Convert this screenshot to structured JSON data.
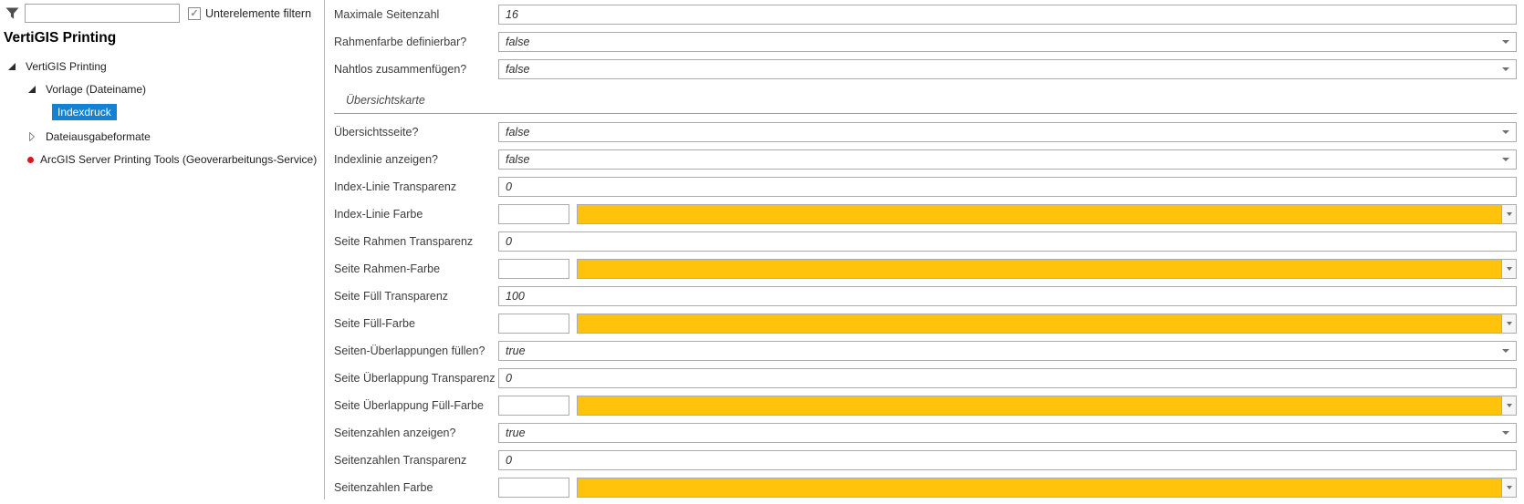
{
  "filter": {
    "input_value": "",
    "checkbox_label": "Unterelemente filtern",
    "checkbox_checked": true,
    "check_glyph": "✓"
  },
  "title": "VertiGIS Printing",
  "tree": [
    {
      "label": "VertiGIS Printing",
      "level": 1,
      "expander": "expanded"
    },
    {
      "label": "Vorlage (Dateiname)",
      "level": 2,
      "expander": "expanded"
    },
    {
      "label": "Indexdruck",
      "level": 3,
      "selected": true
    },
    {
      "label": "Dateiausgabeformate",
      "level": 2,
      "expander": "collapsed"
    },
    {
      "label": "ArcGIS Server Printing Tools (Geoverarbeitungs-Service)",
      "level": 2,
      "bullet": "red-dot"
    }
  ],
  "form": {
    "rows": [
      {
        "type": "text",
        "label": "Maximale Seitenzahl",
        "value": "16"
      },
      {
        "type": "select",
        "label": "Rahmenfarbe definierbar?",
        "value": "false"
      },
      {
        "type": "select",
        "label": "Nahtlos zusammenfügen?",
        "value": "false"
      },
      {
        "type": "section",
        "label": "Übersichtskarte"
      },
      {
        "type": "select",
        "label": "Übersichtsseite?",
        "value": "false"
      },
      {
        "type": "select",
        "label": "Indexlinie anzeigen?",
        "value": "false"
      },
      {
        "type": "text",
        "label": "Index-Linie Transparenz",
        "value": "0"
      },
      {
        "type": "color",
        "label": "Index-Linie Farbe",
        "value": "",
        "swatch": "#FFC30B"
      },
      {
        "type": "text",
        "label": "Seite Rahmen Transparenz",
        "value": "0"
      },
      {
        "type": "color",
        "label": "Seite Rahmen-Farbe",
        "value": "",
        "swatch": "#FFC30B"
      },
      {
        "type": "text",
        "label": "Seite Füll Transparenz",
        "value": "100"
      },
      {
        "type": "color",
        "label": "Seite Füll-Farbe",
        "value": "",
        "swatch": "#FFC30B"
      },
      {
        "type": "select",
        "label": "Seiten-Überlappungen füllen?",
        "value": "true"
      },
      {
        "type": "text",
        "label": "Seite Überlappung Transparenz",
        "value": "0"
      },
      {
        "type": "color",
        "label": "Seite Überlappung Füll-Farbe",
        "value": "",
        "swatch": "#FFC30B"
      },
      {
        "type": "select",
        "label": "Seitenzahlen anzeigen?",
        "value": "true"
      },
      {
        "type": "text",
        "label": "Seitenzahlen Transparenz",
        "value": "0"
      },
      {
        "type": "color",
        "label": "Seitenzahlen Farbe",
        "value": "",
        "swatch": "#FFC30B"
      }
    ]
  },
  "colors": {
    "accent_yellow": "#FFC30B",
    "selection_blue": "#1283D4",
    "bullet_red": "#D8171F"
  }
}
